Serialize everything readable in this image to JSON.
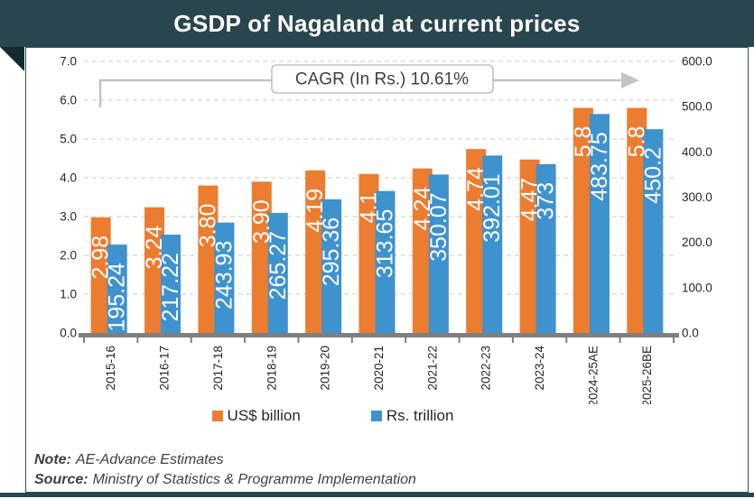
{
  "title_bar": {
    "title": "GSDP of Nagaland at current prices"
  },
  "annotation": {
    "text": "CAGR (In Rs.) 10.61%"
  },
  "chart_data": {
    "type": "bar",
    "title": "GSDP of Nagaland at current prices",
    "categories": [
      "2015-16",
      "2016-17",
      "2017-18",
      "2018-19",
      "2019-20",
      "2020-21",
      "2021-22",
      "2022-23",
      "2023-24",
      "2024-25AE",
      "2025-26BE"
    ],
    "series": [
      {
        "name": "US$ billion",
        "axis": "left",
        "color": "#EC7C30",
        "values": [
          2.98,
          3.24,
          3.8,
          3.9,
          4.19,
          4.1,
          4.24,
          4.74,
          4.47,
          5.8,
          5.8
        ],
        "labels": [
          "2.98",
          "3.24",
          "3.80",
          "3.90",
          "4.19",
          "4.1",
          "4.24",
          "4.74",
          "4.47",
          "5.8",
          "5.8"
        ]
      },
      {
        "name": "Rs. trillion",
        "axis": "right",
        "color": "#3E92CE",
        "values": [
          195.24,
          217.22,
          243.93,
          265.27,
          295.36,
          313.65,
          350.07,
          392.01,
          373,
          483.75,
          450.2
        ],
        "labels": [
          "195.24",
          "217.22",
          "243.93",
          "265.27",
          "295.36",
          "313.65",
          "350.07",
          "392.01",
          "373",
          "483.75",
          "450.2"
        ]
      }
    ],
    "left_axis": {
      "min": 0,
      "max": 7,
      "step": 1,
      "tick_labels": [
        "0.0",
        "1.0",
        "2.0",
        "3.0",
        "4.0",
        "5.0",
        "6.0",
        "7.0"
      ]
    },
    "right_axis": {
      "min": 0,
      "max": 600,
      "step": 100,
      "tick_labels": [
        "0.0",
        "100.0",
        "200.0",
        "300.0",
        "400.0",
        "500.0",
        "600.0"
      ]
    },
    "grid": "horizontal-dashed",
    "legend_position": "bottom",
    "annotation": "CAGR (In Rs.) 10.61%"
  },
  "legend": {
    "items": [
      {
        "label": "US$ billion",
        "color": "#EC7C30"
      },
      {
        "label": "Rs. trillion",
        "color": "#3E92CE"
      }
    ]
  },
  "footer": {
    "note_label": "Note:",
    "note_text": "AE-Advance Estimates",
    "source_label": "Source:",
    "source_text": "Ministry of Statistics & Programme Implementation"
  },
  "colors": {
    "header_bg": "#29464E",
    "header_fold": "#132A30",
    "orange": "#EC7C30",
    "blue": "#3E92CE",
    "axis_line": "#7F7F7F",
    "gridline": "#D3D3D3",
    "arrow": "#C4C4C4",
    "text": "#262626"
  }
}
